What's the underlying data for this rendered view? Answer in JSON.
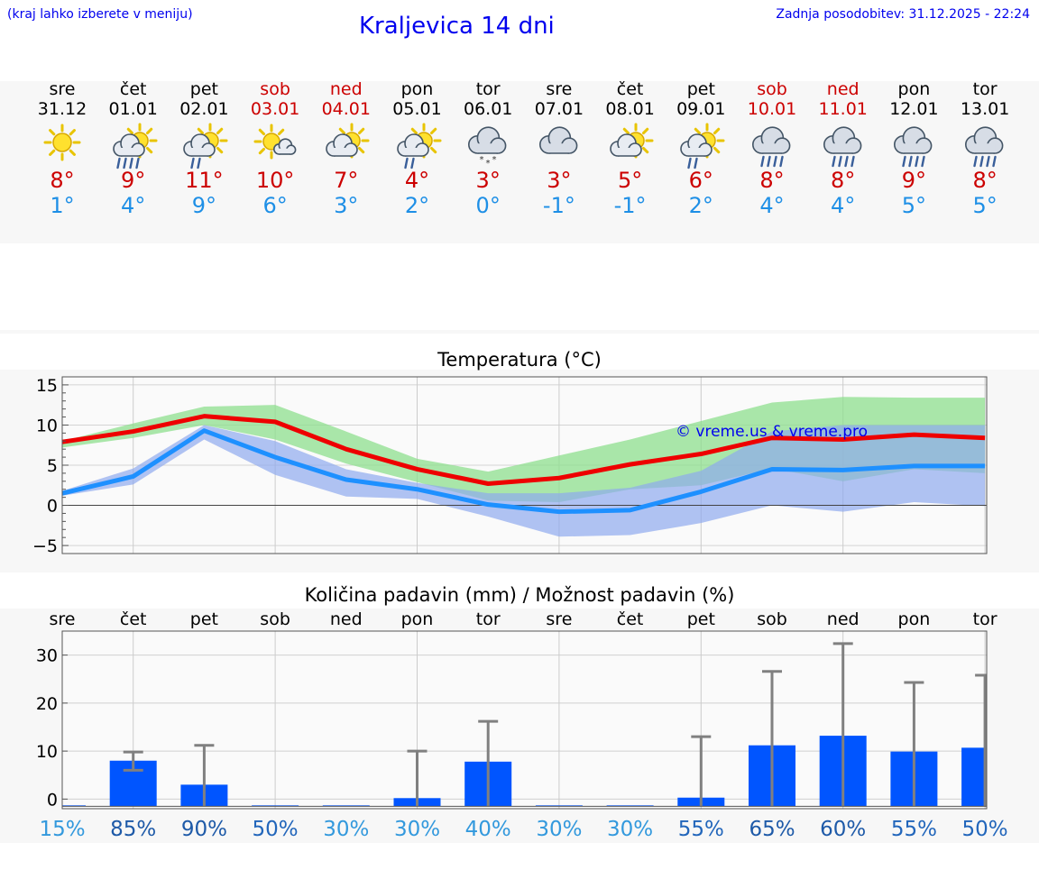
{
  "header": {
    "hint": "(kraj lahko izberete v meniju)",
    "title": "Kraljevica 14 dni",
    "updated": "Zadnja posodobitev: 31.12.2025 - 22:24"
  },
  "days": [
    {
      "day": "sre",
      "date": "31.12",
      "weekend": false,
      "icon": "sun",
      "tmax": "8°",
      "tmin": "1°"
    },
    {
      "day": "čet",
      "date": "01.01",
      "weekend": false,
      "icon": "sun-cloud-rain",
      "tmax": "9°",
      "tmin": "4°"
    },
    {
      "day": "pet",
      "date": "02.01",
      "weekend": false,
      "icon": "sun-cloud-rain-light",
      "tmax": "11°",
      "tmin": "9°"
    },
    {
      "day": "sob",
      "date": "03.01",
      "weekend": true,
      "icon": "sun-small-cloud",
      "tmax": "10°",
      "tmin": "6°"
    },
    {
      "day": "ned",
      "date": "04.01",
      "weekend": true,
      "icon": "sun-cloud",
      "tmax": "7°",
      "tmin": "3°"
    },
    {
      "day": "pon",
      "date": "05.01",
      "weekend": false,
      "icon": "sun-cloud-rain-light",
      "tmax": "4°",
      "tmin": "2°"
    },
    {
      "day": "tor",
      "date": "06.01",
      "weekend": false,
      "icon": "cloud-snow",
      "tmax": "3°",
      "tmin": "0°"
    },
    {
      "day": "sre",
      "date": "07.01",
      "weekend": false,
      "icon": "cloud",
      "tmax": "3°",
      "tmin": "-1°"
    },
    {
      "day": "čet",
      "date": "08.01",
      "weekend": false,
      "icon": "sun-cloud",
      "tmax": "5°",
      "tmin": "-1°"
    },
    {
      "day": "pet",
      "date": "09.01",
      "weekend": false,
      "icon": "sun-cloud-rain-light",
      "tmax": "6°",
      "tmin": "2°"
    },
    {
      "day": "sob",
      "date": "10.01",
      "weekend": true,
      "icon": "cloud-rain",
      "tmax": "8°",
      "tmin": "4°"
    },
    {
      "day": "ned",
      "date": "11.01",
      "weekend": true,
      "icon": "cloud-rain",
      "tmax": "8°",
      "tmin": "4°"
    },
    {
      "day": "pon",
      "date": "12.01",
      "weekend": false,
      "icon": "cloud-rain",
      "tmax": "9°",
      "tmin": "5°"
    },
    {
      "day": "tor",
      "date": "13.01",
      "weekend": false,
      "icon": "cloud-rain",
      "tmax": "8°",
      "tmin": "5°"
    }
  ],
  "colors": {
    "max_line": "#ee0000",
    "min_line": "#1e90ff",
    "max_band": "#8ddf8d",
    "min_band": "#8faaee",
    "weekend": "#cc0000",
    "rain_bar": "#0055ff",
    "whisker": "#808080",
    "watermark": "#0000ee"
  },
  "chart_data": [
    {
      "type": "line",
      "title": "Temperatura (°C)",
      "watermark": "© vreme.us & vreme.pro",
      "ylim": [
        -6,
        16
      ],
      "yticks": [
        -5,
        0,
        5,
        10,
        15
      ],
      "ytick_labels": [
        "−5",
        "0",
        "5",
        "10",
        "15"
      ],
      "x": [
        0,
        1,
        2,
        3,
        4,
        5,
        6,
        7,
        8,
        9,
        10,
        11,
        12,
        13
      ],
      "series": [
        {
          "name": "max",
          "values": [
            7.9,
            9.2,
            11.1,
            10.4,
            7.0,
            4.5,
            2.7,
            3.4,
            5.1,
            6.4,
            8.4,
            8.2,
            8.8,
            8.4
          ]
        },
        {
          "name": "min",
          "values": [
            1.5,
            3.6,
            9.3,
            6.0,
            3.2,
            2.0,
            0.1,
            -0.8,
            -0.6,
            1.7,
            4.5,
            4.4,
            4.9,
            4.9
          ]
        }
      ],
      "bands": [
        {
          "name": "max-range",
          "upper": [
            8.0,
            10.2,
            12.3,
            12.5,
            9.2,
            5.8,
            4.2,
            6.2,
            8.2,
            10.5,
            12.8,
            13.5,
            13.4,
            13.4
          ],
          "lower": [
            7.2,
            8.4,
            10.0,
            8.2,
            5.2,
            2.9,
            0.6,
            0.4,
            2.0,
            2.5,
            4.6,
            3.0,
            4.5,
            4.0
          ]
        },
        {
          "name": "min-range",
          "upper": [
            1.8,
            4.6,
            10.0,
            8.0,
            4.5,
            2.8,
            1.5,
            1.5,
            2.2,
            4.3,
            9.2,
            10.0,
            10.0,
            10.0
          ],
          "lower": [
            1.2,
            2.6,
            8.2,
            3.8,
            1.1,
            0.8,
            -1.4,
            -3.9,
            -3.7,
            -2.2,
            0.0,
            -0.8,
            0.4,
            -0.1
          ]
        }
      ]
    },
    {
      "type": "bar",
      "title": "Količina padavin (mm) / Možnost padavin (%)",
      "categories": [
        "sre",
        "čet",
        "pet",
        "sob",
        "ned",
        "pon",
        "tor",
        "sre",
        "čet",
        "pet",
        "sob",
        "ned",
        "pon",
        "tor"
      ],
      "ylim": [
        -2,
        35
      ],
      "yticks": [
        0,
        10,
        20,
        30
      ],
      "ytick_labels": [
        "0",
        "10",
        "20",
        "30"
      ],
      "values": [
        0,
        8.0,
        3.0,
        0,
        0,
        0.2,
        7.8,
        0,
        0,
        0.3,
        11.2,
        13.2,
        9.9,
        10.7
      ],
      "whisker_low": [
        0,
        6.0,
        0,
        0,
        0,
        0,
        0,
        0,
        0,
        0,
        0,
        0,
        0,
        0
      ],
      "whisker_high": [
        0,
        9.8,
        11.2,
        0,
        0,
        10.0,
        16.2,
        0,
        0,
        13.0,
        26.6,
        32.4,
        24.3,
        25.8
      ],
      "probability": [
        "15%",
        "85%",
        "90%",
        "50%",
        "30%",
        "30%",
        "40%",
        "30%",
        "30%",
        "55%",
        "65%",
        "60%",
        "55%",
        "50%"
      ],
      "probability_colors": [
        "#3399dd",
        "#1e5aa8",
        "#1e5aa8",
        "#2266bb",
        "#3399dd",
        "#3399dd",
        "#3399dd",
        "#3399dd",
        "#3399dd",
        "#2266bb",
        "#1e5aa8",
        "#1e5aa8",
        "#2266bb",
        "#2266bb"
      ]
    }
  ]
}
